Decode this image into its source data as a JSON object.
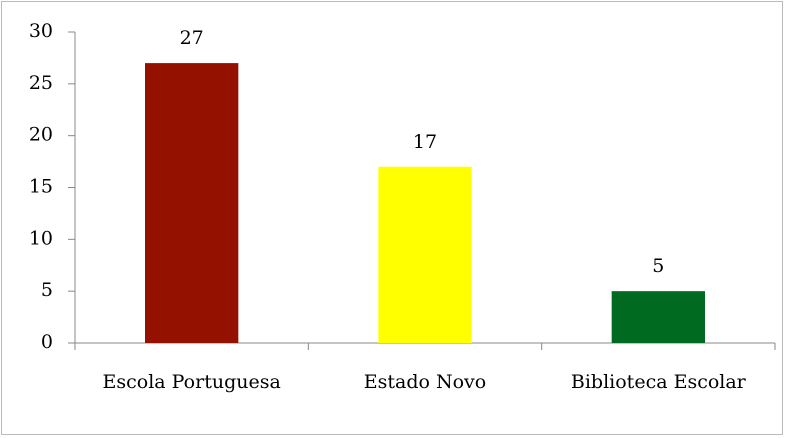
{
  "chart_data": {
    "type": "bar",
    "categories": [
      "Escola Portuguesa",
      "Estado Novo",
      "Biblioteca Escolar"
    ],
    "values": [
      27,
      17,
      5
    ],
    "colors": [
      "#941100",
      "#ffff00",
      "#006a21"
    ],
    "ylim": [
      0,
      30
    ],
    "yticks": [
      0,
      5,
      10,
      15,
      20,
      25,
      30
    ],
    "grid": false
  }
}
